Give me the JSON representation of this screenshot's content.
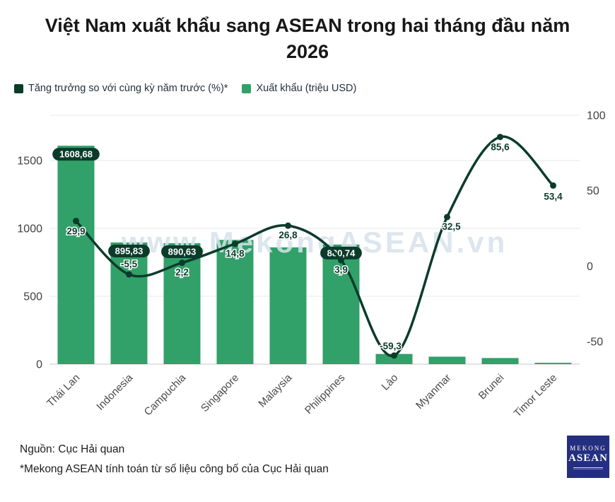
{
  "title": "Việt Nam xuất khẩu sang ASEAN trong hai tháng đầu năm 2026",
  "legend": {
    "items": [
      {
        "label": "Tăng trưởng so với cùng kỳ năm trước (%)*",
        "color": "#0c3b2a"
      },
      {
        "label": "Xuất khẩu (triệu USD)",
        "color": "#31a069"
      }
    ]
  },
  "chart_data": {
    "type": "combo-bar-line",
    "categories": [
      "Thái Lan",
      "Indonesia",
      "Campuchia",
      "Singapore",
      "Malaysia",
      "Philippines",
      "Lào",
      "Myanmar",
      "Brunei",
      "Timor Leste"
    ],
    "series": [
      {
        "name": "Xuất khẩu (triệu USD)",
        "type": "bar",
        "axis": "left",
        "color": "#31a069",
        "values": [
          1608.68,
          895.83,
          890.63,
          915,
          860,
          880.74,
          75,
          55,
          45,
          10
        ],
        "value_labels": [
          "1608,68",
          "895,83",
          "890,63",
          null,
          null,
          "880,74",
          null,
          null,
          null,
          null
        ]
      },
      {
        "name": "Tăng trưởng so với cùng kỳ năm trước (%)*",
        "type": "line",
        "axis": "right",
        "color": "#0c3b2a",
        "values": [
          29.9,
          -5.5,
          2.2,
          14.8,
          26.8,
          3.9,
          -59.3,
          32.5,
          85.6,
          53.4
        ],
        "value_labels": [
          "29,9",
          "-5,5",
          "2,2",
          "14,8",
          "26,8",
          "3,9",
          "-59,3",
          "32,5",
          "85,6",
          "53,4"
        ]
      }
    ],
    "left_axis": {
      "ticks": [
        0,
        500,
        1000,
        1500
      ],
      "range": [
        0,
        1833
      ]
    },
    "right_axis": {
      "ticks": [
        -50,
        0,
        50,
        100
      ],
      "range": [
        -65,
        100
      ]
    },
    "grid": true,
    "legend_position": "top-left",
    "watermark": "www.MekongASEAN.vn",
    "watermark_color": "#d7e2eb"
  },
  "footer": {
    "source": "Nguồn: Cục Hải quan",
    "note": "*Mekong ASEAN tính toán từ số liệu công bố của Cục Hải quan"
  },
  "logo": {
    "top": "MEKONG",
    "bottom": "ASEAN",
    "color": "#242f7f"
  }
}
